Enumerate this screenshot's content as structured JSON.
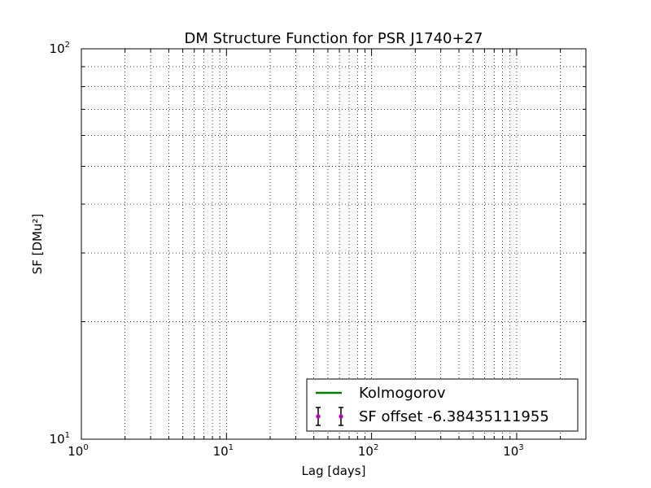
{
  "chart_data": {
    "type": "line",
    "title": "DM Structure Function for PSR J1740+27",
    "xlabel": "Lag [days]",
    "ylabel": "SF [DMu²]",
    "xscale": "log",
    "yscale": "log",
    "xlim": [
      1,
      3000
    ],
    "ylim": [
      10,
      100
    ],
    "grid": true,
    "x_ticks": [
      {
        "base": "10",
        "exp": "0"
      },
      {
        "base": "10",
        "exp": "1"
      },
      {
        "base": "10",
        "exp": "2"
      },
      {
        "base": "10",
        "exp": "3"
      }
    ],
    "y_ticks": [
      {
        "base": "10",
        "exp": "1"
      },
      {
        "base": "10",
        "exp": "2"
      }
    ],
    "legend": {
      "position": "lower-right",
      "entries": [
        {
          "label": "Kolmogorov",
          "color": "#008000",
          "marker": "line"
        },
        {
          "label": "SF offset -6.38435111955",
          "color": "#bf00bf",
          "marker": "errorbar"
        }
      ]
    },
    "series": [
      {
        "name": "Kolmogorov",
        "color": "#008000",
        "x": [],
        "y": []
      },
      {
        "name": "SF offset -6.38435111955",
        "color": "#bf00bf",
        "x": [],
        "y": []
      }
    ]
  }
}
